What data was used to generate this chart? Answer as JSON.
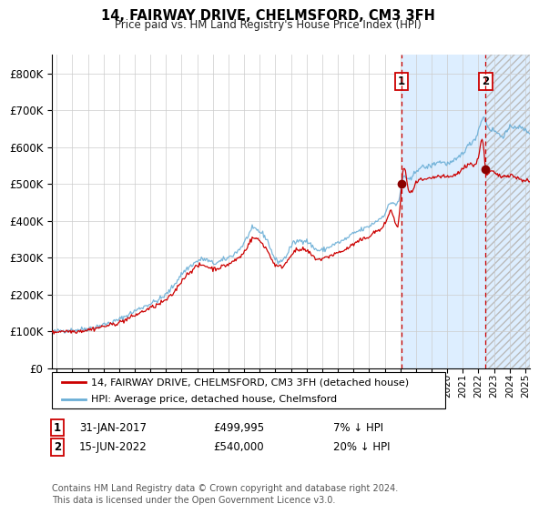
{
  "title": "14, FAIRWAY DRIVE, CHELMSFORD, CM3 3FH",
  "subtitle": "Price paid vs. HM Land Registry's House Price Index (HPI)",
  "legend_line1": "14, FAIRWAY DRIVE, CHELMSFORD, CM3 3FH (detached house)",
  "legend_line2": "HPI: Average price, detached house, Chelmsford",
  "sale1_label": "31-JAN-2017",
  "sale1_price": 499995,
  "sale1_text": "7% ↓ HPI",
  "sale2_label": "15-JUN-2022",
  "sale2_price": 540000,
  "sale2_text": "20% ↓ HPI",
  "hpi_color": "#6aaed6",
  "price_color": "#cc0000",
  "dot_color": "#8b0000",
  "shaded_bg_color": "#ddeeff",
  "grid_color": "#cccccc",
  "ylim": [
    0,
    850000
  ],
  "yticks": [
    0,
    100000,
    200000,
    300000,
    400000,
    500000,
    600000,
    700000,
    800000
  ],
  "xlim_start": 1994.7,
  "xlim_end": 2025.3,
  "shade_start": 2017.08,
  "hatch_start": 2022.5,
  "sale1_x": 2017.08,
  "sale2_x": 2022.46,
  "footer": "Contains HM Land Registry data © Crown copyright and database right 2024.\nThis data is licensed under the Open Government Licence v3.0."
}
